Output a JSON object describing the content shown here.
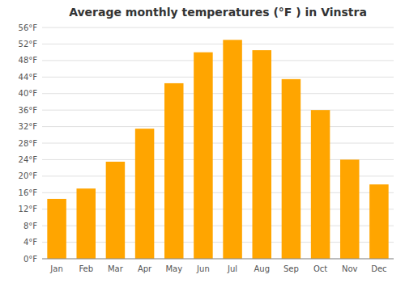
{
  "chart_data": {
    "type": "bar",
    "title": "Average monthly temperatures (°F ) in Vinstra",
    "categories": [
      "Jan",
      "Feb",
      "Mar",
      "Apr",
      "May",
      "Jun",
      "Jul",
      "Aug",
      "Sep",
      "Oct",
      "Nov",
      "Dec"
    ],
    "values": [
      14.5,
      17.0,
      23.5,
      31.5,
      42.5,
      50.0,
      53.0,
      50.5,
      43.5,
      36.0,
      24.0,
      18.0
    ],
    "color": "#FFA500",
    "ylim": [
      0,
      56
    ],
    "yticks": [
      {
        "value": 0,
        "label": "0°F"
      },
      {
        "value": 4,
        "label": "4°F"
      },
      {
        "value": 8,
        "label": "8°F"
      },
      {
        "value": 12,
        "label": "12°F"
      },
      {
        "value": 16,
        "label": "16°F"
      },
      {
        "value": 20,
        "label": "20°F"
      },
      {
        "value": 24,
        "label": "24°F"
      },
      {
        "value": 28,
        "label": "28°F"
      },
      {
        "value": 32,
        "label": "32°F"
      },
      {
        "value": 36,
        "label": "36°F"
      },
      {
        "value": 40,
        "label": "40°F"
      },
      {
        "value": 44,
        "label": "44°F"
      },
      {
        "value": 48,
        "label": "48°F"
      },
      {
        "value": 52,
        "label": "52°F"
      },
      {
        "value": 56,
        "label": "56°F"
      }
    ],
    "grid": true
  }
}
